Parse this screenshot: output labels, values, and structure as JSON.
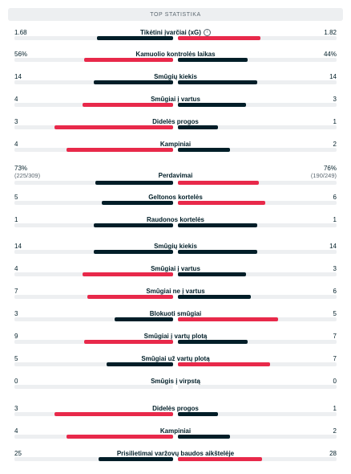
{
  "header": {
    "title": "TOP STATISTIKA"
  },
  "colors": {
    "win": "#e8294a",
    "lose": "#001e28",
    "track": "#edeff1"
  },
  "stats": [
    {
      "label": "Tikėtini įvarčiai (xG)",
      "home": "1.68",
      "away": "1.82",
      "home_share": 0.48,
      "away_share": 0.52,
      "home_win": false,
      "info_icon": "info-icon"
    },
    {
      "label": "Kamuolio kontrolės laikas",
      "home": "56%",
      "away": "44%",
      "home_share": 0.56,
      "away_share": 0.44,
      "home_win": true
    },
    {
      "label": "Smūgių kiekis",
      "home": "14",
      "away": "14",
      "home_share": 0.5,
      "away_share": 0.5,
      "home_win": null
    },
    {
      "label": "Smūgiai į vartus",
      "home": "4",
      "away": "3",
      "home_share": 0.57,
      "away_share": 0.43,
      "home_win": true
    },
    {
      "label": "Didelės progos",
      "home": "3",
      "away": "1",
      "home_share": 0.75,
      "away_share": 0.25,
      "home_win": true
    },
    {
      "label": "Kampiniai",
      "home": "4",
      "away": "2",
      "home_share": 0.67,
      "away_share": 0.33,
      "home_win": true
    },
    {
      "label": "Perdavimai",
      "home": "73%",
      "home_sub": "(225/309)",
      "away": "76%",
      "away_sub": "(190/249)",
      "home_share": 0.49,
      "away_share": 0.51,
      "home_win": false
    },
    {
      "label": "Geltonos kortelės",
      "home": "5",
      "away": "6",
      "home_share": 0.45,
      "away_share": 0.55,
      "home_win": false
    },
    {
      "label": "Raudonos kortelės",
      "home": "1",
      "away": "1",
      "home_share": 0.5,
      "away_share": 0.5,
      "home_win": null
    },
    {
      "label": "Smūgių kiekis",
      "home": "14",
      "away": "14",
      "home_share": 0.5,
      "away_share": 0.5,
      "home_win": null
    },
    {
      "label": "Smūgiai į vartus",
      "home": "4",
      "away": "3",
      "home_share": 0.57,
      "away_share": 0.43,
      "home_win": true
    },
    {
      "label": "Smūgiai ne į vartus",
      "home": "7",
      "away": "6",
      "home_share": 0.54,
      "away_share": 0.46,
      "home_win": true
    },
    {
      "label": "Blokuoti smūgiai",
      "home": "3",
      "away": "5",
      "home_share": 0.37,
      "away_share": 0.63,
      "home_win": false
    },
    {
      "label": "Smūgiai į vartų plotą",
      "home": "9",
      "away": "7",
      "home_share": 0.56,
      "away_share": 0.44,
      "home_win": true
    },
    {
      "label": "Smūgiai už vartų plotą",
      "home": "5",
      "away": "7",
      "home_share": 0.42,
      "away_share": 0.58,
      "home_win": false
    },
    {
      "label": "Smūgis į virpstą",
      "home": "0",
      "away": "0",
      "home_share": 0,
      "away_share": 0,
      "home_win": null
    },
    {
      "label": "Didelės progos",
      "home": "3",
      "away": "1",
      "home_share": 0.75,
      "away_share": 0.25,
      "home_win": true
    },
    {
      "label": "Kampiniai",
      "home": "4",
      "away": "2",
      "home_share": 0.67,
      "away_share": 0.33,
      "home_win": true
    },
    {
      "label": "Prisilietimai varžovų baudos aikštelėje",
      "home": "25",
      "away": "28",
      "home_share": 0.47,
      "away_share": 0.53,
      "home_win": false
    }
  ]
}
